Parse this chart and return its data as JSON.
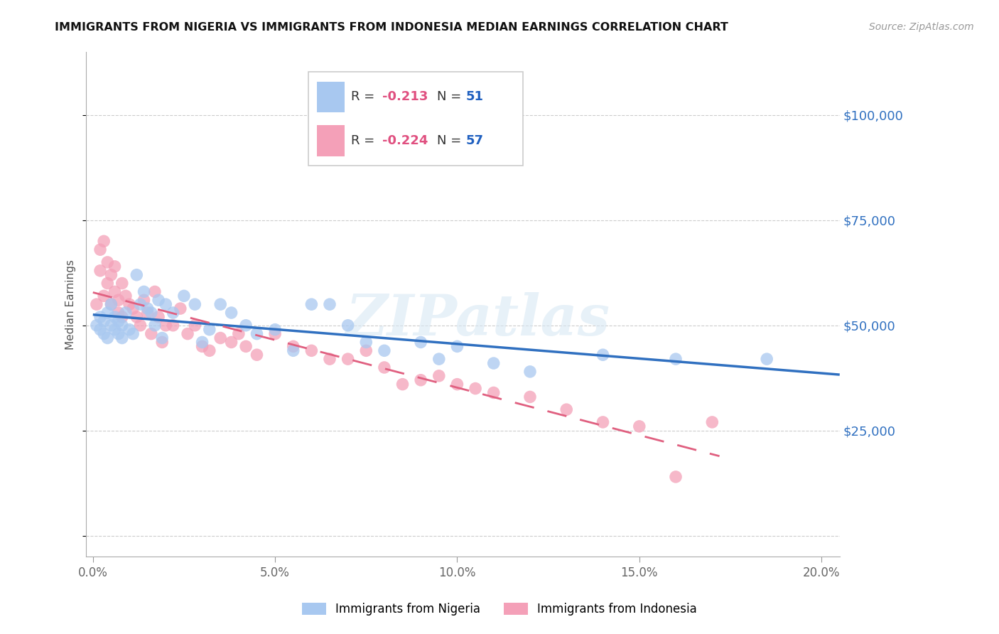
{
  "title": "IMMIGRANTS FROM NIGERIA VS IMMIGRANTS FROM INDONESIA MEDIAN EARNINGS CORRELATION CHART",
  "source": "Source: ZipAtlas.com",
  "ylabel": "Median Earnings",
  "xlabel_ticks": [
    "0.0%",
    "5.0%",
    "10.0%",
    "15.0%",
    "20.0%"
  ],
  "xlabel_vals": [
    0.0,
    0.05,
    0.1,
    0.15,
    0.2
  ],
  "ylabel_ticks": [
    0,
    25000,
    50000,
    75000,
    100000
  ],
  "ylabel_labels": [
    "",
    "$25,000",
    "$50,000",
    "$75,000",
    "$100,000"
  ],
  "ylim": [
    -5000,
    115000
  ],
  "xlim": [
    -0.002,
    0.205
  ],
  "nigeria_color": "#A8C8F0",
  "indonesia_color": "#F4A0B8",
  "nigeria_line_color": "#3070C0",
  "indonesia_line_color": "#E06080",
  "watermark": "ZIPatlas",
  "legend_R_nigeria": "-0.213",
  "legend_N_nigeria": "51",
  "legend_R_indonesia": "-0.224",
  "legend_N_indonesia": "57",
  "nigeria_x": [
    0.001,
    0.002,
    0.002,
    0.003,
    0.003,
    0.004,
    0.004,
    0.005,
    0.005,
    0.006,
    0.006,
    0.007,
    0.007,
    0.008,
    0.008,
    0.009,
    0.01,
    0.011,
    0.012,
    0.013,
    0.014,
    0.015,
    0.016,
    0.017,
    0.018,
    0.019,
    0.02,
    0.022,
    0.025,
    0.028,
    0.03,
    0.032,
    0.035,
    0.038,
    0.042,
    0.045,
    0.05,
    0.055,
    0.06,
    0.065,
    0.07,
    0.075,
    0.08,
    0.09,
    0.095,
    0.1,
    0.11,
    0.12,
    0.14,
    0.16,
    0.185
  ],
  "nigeria_y": [
    50000,
    49000,
    52000,
    51000,
    48000,
    53000,
    47000,
    50000,
    55000,
    49000,
    52000,
    48000,
    51000,
    50000,
    47000,
    53000,
    49000,
    48000,
    62000,
    55000,
    58000,
    54000,
    53000,
    50000,
    56000,
    47000,
    55000,
    53000,
    57000,
    55000,
    46000,
    49000,
    55000,
    53000,
    50000,
    48000,
    49000,
    44000,
    55000,
    55000,
    50000,
    46000,
    44000,
    46000,
    42000,
    45000,
    41000,
    39000,
    43000,
    42000,
    42000
  ],
  "indonesia_x": [
    0.001,
    0.002,
    0.002,
    0.003,
    0.003,
    0.004,
    0.004,
    0.005,
    0.005,
    0.006,
    0.006,
    0.007,
    0.007,
    0.008,
    0.008,
    0.009,
    0.01,
    0.011,
    0.012,
    0.013,
    0.014,
    0.015,
    0.016,
    0.017,
    0.018,
    0.019,
    0.02,
    0.022,
    0.024,
    0.026,
    0.028,
    0.03,
    0.032,
    0.035,
    0.038,
    0.04,
    0.042,
    0.045,
    0.05,
    0.055,
    0.06,
    0.065,
    0.07,
    0.075,
    0.08,
    0.085,
    0.09,
    0.095,
    0.1,
    0.105,
    0.11,
    0.12,
    0.13,
    0.14,
    0.15,
    0.16,
    0.17
  ],
  "indonesia_y": [
    55000,
    68000,
    63000,
    70000,
    57000,
    65000,
    60000,
    62000,
    55000,
    58000,
    64000,
    56000,
    53000,
    60000,
    52000,
    57000,
    55000,
    54000,
    52000,
    50000,
    56000,
    53000,
    48000,
    58000,
    52000,
    46000,
    50000,
    50000,
    54000,
    48000,
    50000,
    45000,
    44000,
    47000,
    46000,
    48000,
    45000,
    43000,
    48000,
    45000,
    44000,
    42000,
    42000,
    44000,
    40000,
    36000,
    37000,
    38000,
    36000,
    35000,
    34000,
    33000,
    30000,
    27000,
    26000,
    14000,
    27000
  ],
  "nigeria_line_x0": 0.0,
  "nigeria_line_x1": 0.205,
  "nigeria_line_y0": 51500,
  "nigeria_line_y1": 41500,
  "indonesia_line_x0": 0.0,
  "indonesia_line_x1": 0.17,
  "indonesia_line_y0": 52000,
  "indonesia_line_y1": 28000
}
